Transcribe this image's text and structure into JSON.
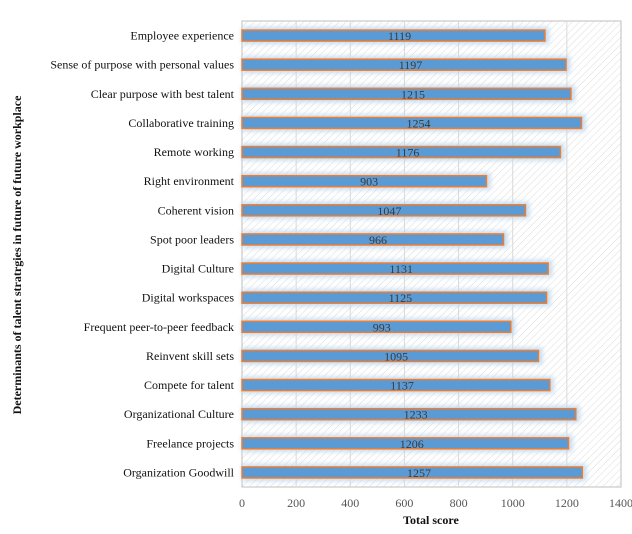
{
  "chart_data": {
    "type": "bar",
    "orientation": "horizontal",
    "categories": [
      "Employee experience",
      "Sense of purpose  with personal values",
      "Clear purpose with best talent",
      "Collaborative training",
      "Remote working",
      "Right environment",
      "Coherent vision",
      "Spot poor leaders",
      "Digital Culture",
      "Digital workspaces",
      "Frequent peer-to-peer feedback",
      "Reinvent skill sets",
      "Compete for talent",
      "Organizational Culture",
      "Freelance projects",
      "Organization Goodwill"
    ],
    "values": [
      1119,
      1197,
      1215,
      1254,
      1176,
      903,
      1047,
      966,
      1131,
      1125,
      993,
      1095,
      1137,
      1233,
      1206,
      1257
    ],
    "data_labels": [
      "1119",
      "1197",
      "1215",
      "1254",
      "1176",
      "903",
      "1047",
      "966",
      "1131",
      "1125",
      "993",
      "1095",
      "1137",
      "1233",
      "1206",
      "1257"
    ],
    "xlabel": "Total score",
    "ylabel": "Determinants of talent stratrgies  in future of future workplace",
    "xlim": [
      0,
      1400
    ],
    "xticks": [
      "0",
      "200",
      "400",
      "600",
      "800",
      "1000",
      "1200",
      "1400"
    ],
    "grid": true,
    "legend": "none",
    "colors": {
      "bar_fill": "#5b9bd5",
      "bar_border": "#ed7d31",
      "bar_glow": "#bdd7ee",
      "grid": "#d9d9d9",
      "plot_border": "#bfbfbf"
    }
  }
}
